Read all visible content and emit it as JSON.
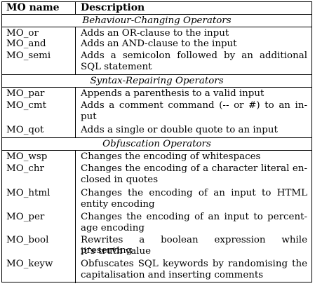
{
  "table": {
    "headers": {
      "name": "MO name",
      "description": "Description"
    },
    "sections": [
      {
        "title": "Behaviour-Changing Operators",
        "rows": [
          {
            "name": "MO_or",
            "desc": [
              "Adds an OR-clause to the input"
            ]
          },
          {
            "name": "MO_and",
            "desc": [
              "Adds an AND-clause to the input"
            ]
          },
          {
            "name": "MO_semi",
            "desc": [
              "Adds a semicolon followed by an additional",
              "SQL statement"
            ]
          }
        ]
      },
      {
        "title": "Syntax-Repairing Operators",
        "rows": [
          {
            "name": "MO_par",
            "desc": [
              "Appends a parenthesis to a valid input"
            ]
          },
          {
            "name": "MO_cmt",
            "desc": [
              "Adds a comment command (-- or #) to an in-",
              "put"
            ]
          },
          {
            "name": "MO_qot",
            "desc": [
              "Adds a single or double quote to an input"
            ]
          }
        ]
      },
      {
        "title": "Obfuscation Operators",
        "rows": [
          {
            "name": "MO_wsp",
            "desc": [
              "Changes the encoding of whitespaces"
            ]
          },
          {
            "name": "MO_chr",
            "desc": [
              "Changes the encoding of a character literal en-",
              "closed in quotes"
            ]
          },
          {
            "name": "MO_html",
            "desc": [
              "Changes the encoding of an input to HTML",
              "entity encoding"
            ]
          },
          {
            "name": "MO_per",
            "desc": [
              "Changes the encoding of an input to percent-",
              "age encoding"
            ]
          },
          {
            "name": "MO_bool",
            "desc": [
              "Rewrites a boolean expression while preserving",
              "it’s truth value"
            ]
          },
          {
            "name": "MO_keyw",
            "desc": [
              "Obfuscates SQL keywords by randomising the",
              "capitalisation and inserting comments"
            ]
          }
        ]
      }
    ]
  }
}
